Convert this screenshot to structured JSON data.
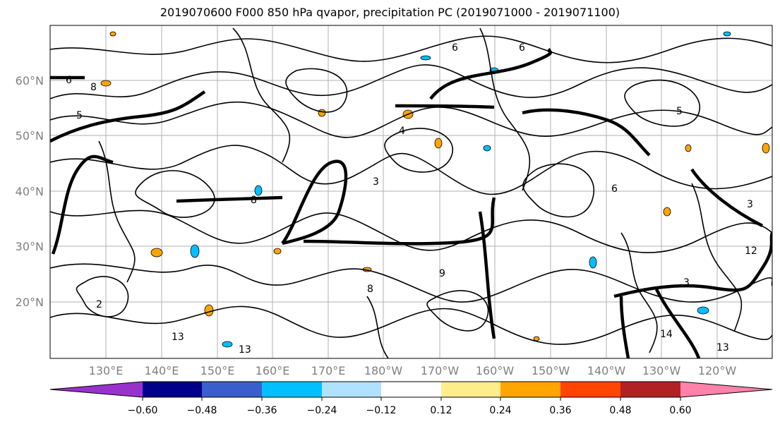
{
  "title": "2019070600 F000 850 hPa qvapor, precipitation PC (2019071000 - 2019071100)",
  "map": {
    "lat_labels": [
      "60°N",
      "50°N",
      "40°N",
      "30°N",
      "20°N"
    ],
    "lon_labels": [
      "130°E",
      "140°E",
      "150°E",
      "160°E",
      "170°E",
      "180°W",
      "170°W",
      "160°W",
      "150°W",
      "140°W",
      "130°W",
      "120°W"
    ],
    "label_color": "#808080",
    "contour_color": "#000000",
    "contour_labels": [
      "6",
      "8",
      "5",
      "3",
      "9",
      "13",
      "14",
      "12",
      "4",
      "2"
    ]
  },
  "colorbar": {
    "colors": [
      "#9932cc",
      "#00008b",
      "#3a5fcd",
      "#00bfff",
      "#b0e2ff",
      "#ffffff",
      "#ffec8b",
      "#ffa500",
      "#ff4500",
      "#b22222",
      "#ff82ab"
    ],
    "tick_labels": [
      "−0.60",
      "−0.48",
      "−0.36",
      "−0.24",
      "−0.12",
      "0.12",
      "0.24",
      "0.36",
      "0.48",
      "0.60"
    ]
  }
}
